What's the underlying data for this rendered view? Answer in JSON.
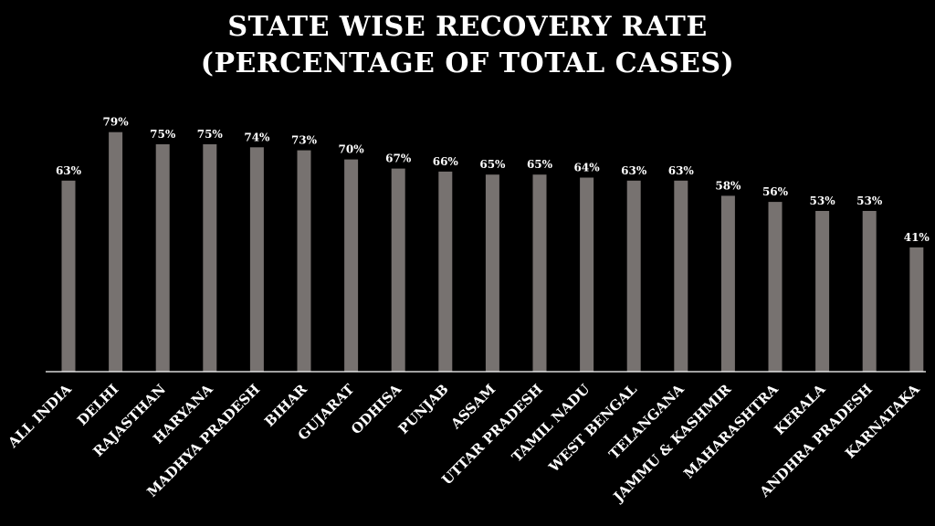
{
  "chart_data": {
    "type": "bar",
    "title": "STATE WISE RECOVERY RATE",
    "subtitle": "(PERCENTAGE OF TOTAL CASES)",
    "xlabel": "",
    "ylabel": "",
    "ylim": [
      0,
      85
    ],
    "grid": false,
    "legend": "none",
    "categories": [
      "ALL INDIA",
      "DELHI",
      "RAJASTHAN",
      "HARYANA",
      "MADHYA PRADESH",
      "BIHAR",
      "GUJARAT",
      "ODHISA",
      "PUNJAB",
      "ASSAM",
      "UTTAR PRADESH",
      "TAMIL NADU",
      "WEST BENGAL",
      "TELANGANA",
      "JAMMU & KASHMIR",
      "MAHARASHTRA",
      "KERALA",
      "ANDHRA PRADESH",
      "KARNATAKA"
    ],
    "values": [
      63,
      79,
      75,
      75,
      74,
      73,
      70,
      67,
      66,
      65,
      65,
      64,
      63,
      63,
      58,
      56,
      53,
      53,
      41
    ],
    "value_labels": [
      "63%",
      "79%",
      "75%",
      "75%",
      "74%",
      "73%",
      "70%",
      "67%",
      "66%",
      "65%",
      "65%",
      "64%",
      "63%",
      "63%",
      "58%",
      "56%",
      "53%",
      "53%",
      "41%"
    ],
    "colors": {
      "bar": "#777270",
      "text": "#ffffff",
      "background": "#000000",
      "axis": "#ffffff"
    }
  }
}
